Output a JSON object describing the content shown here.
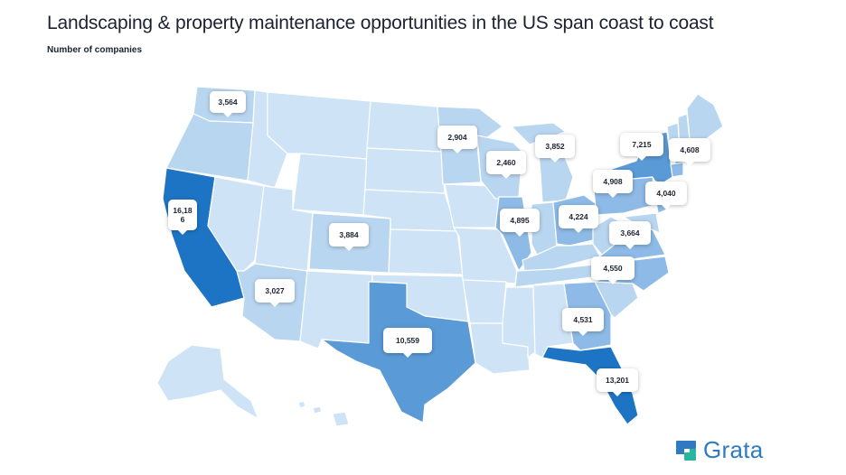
{
  "header": {
    "title": "Landscaping & property maintenance opportunities in the US span coast to coast",
    "subtitle": "Number of companies"
  },
  "colors": {
    "lightest": "#cfe3f6",
    "light": "#b9d6f1",
    "medium": "#8dbae6",
    "dark": "#5a9ad6",
    "darkest": "#1e74c4",
    "logo": "#2f7ac0"
  },
  "map": {
    "callouts": [
      {
        "state": "WA",
        "value": "3,564"
      },
      {
        "state": "CA",
        "value": "16,18\n6"
      },
      {
        "state": "AZ",
        "value": "3,027"
      },
      {
        "state": "CO",
        "value": "3,884"
      },
      {
        "state": "TX",
        "value": "10,559"
      },
      {
        "state": "MN",
        "value": "2,904"
      },
      {
        "state": "WI",
        "value": "2,460"
      },
      {
        "state": "MI",
        "value": "3,852"
      },
      {
        "state": "IL",
        "value": "4,895"
      },
      {
        "state": "OH",
        "value": "4,224"
      },
      {
        "state": "PA",
        "value": "4,908"
      },
      {
        "state": "NY",
        "value": "7,215"
      },
      {
        "state": "MA",
        "value": "4,608"
      },
      {
        "state": "NJ",
        "value": "4,040"
      },
      {
        "state": "VA",
        "value": "3,664"
      },
      {
        "state": "NC",
        "value": "4,550"
      },
      {
        "state": "GA",
        "value": "4,531"
      },
      {
        "state": "FL",
        "value": "13,201"
      }
    ]
  },
  "logo": {
    "name": "Grata"
  }
}
